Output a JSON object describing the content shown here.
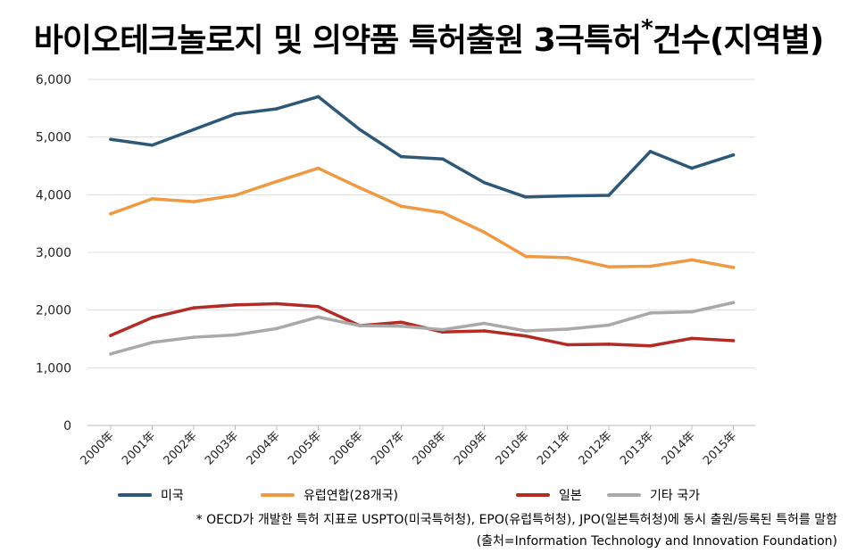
{
  "title": "바이오테크놀로지 및 의약품 특허출원 3극특허",
  "title_mark": "*",
  "title_suffix": "건수(지역별)",
  "footnote": "* OECD가 개발한 특허 지표로 USPTO(미국특허청), EPO(유럽특허청), JPO(일본특허청)에 동시 출원/등록된 특허를 말함",
  "source": "(출처=Information Technology and Innovation Foundation)",
  "chart_data": {
    "type": "line",
    "categories": [
      "2000年",
      "2001年",
      "2002年",
      "2003年",
      "2004年",
      "2005年",
      "2006年",
      "2007年",
      "2008年",
      "2009年",
      "2010年",
      "2011年",
      "2012年",
      "2013年",
      "2014年",
      "2015年"
    ],
    "ylim": [
      0,
      6000
    ],
    "yticks": [
      "0",
      "1,000",
      "2,000",
      "3,000",
      "4,000",
      "5,000",
      "6,000"
    ],
    "ytick_values": [
      0,
      1000,
      2000,
      3000,
      4000,
      5000,
      6000
    ],
    "grid": true,
    "legend_position": "bottom",
    "series": [
      {
        "name": "미국",
        "color": "#2e5877",
        "values": [
          4960,
          4860,
          5130,
          5400,
          5490,
          5700,
          5130,
          4660,
          4620,
          4210,
          3960,
          3980,
          3990,
          4750,
          4460,
          4690
        ]
      },
      {
        "name": "유럽연합(28개국)",
        "color": "#ef9a42",
        "values": [
          3670,
          3930,
          3880,
          3990,
          4230,
          4460,
          4120,
          3800,
          3690,
          3350,
          2930,
          2910,
          2750,
          2760,
          2870,
          2740
        ]
      },
      {
        "name": "일본",
        "color": "#b22b24",
        "values": [
          1560,
          1870,
          2040,
          2090,
          2110,
          2060,
          1730,
          1790,
          1620,
          1640,
          1550,
          1400,
          1410,
          1380,
          1510,
          1470
        ]
      },
      {
        "name": "기타 국가",
        "color": "#a9a9a9",
        "values": [
          1240,
          1440,
          1530,
          1570,
          1680,
          1880,
          1730,
          1720,
          1660,
          1770,
          1640,
          1670,
          1740,
          1950,
          1970,
          2130
        ]
      }
    ]
  }
}
